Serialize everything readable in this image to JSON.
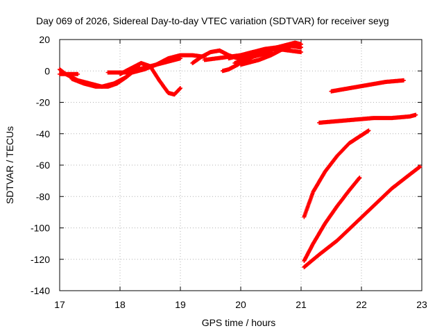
{
  "chart_data": {
    "type": "scatter",
    "title": "Day 069 of 2026, Sidereal Day-to-day VTEC variation (SDTVAR) for receiver seyg",
    "xlabel": "GPS time / hours",
    "ylabel": "SDTVAR / TECUs",
    "xlim": [
      17,
      23
    ],
    "ylim": [
      -140,
      20
    ],
    "xticks": [
      "17",
      "18",
      "19",
      "20",
      "21",
      "22",
      "23"
    ],
    "yticks": [
      "20",
      "0",
      "-20",
      "-40",
      "-60",
      "-80",
      "-100",
      "-120",
      "-140"
    ],
    "grid": true,
    "marker": "plus",
    "color": "#ff0000",
    "series": [
      {
        "x": [
          17.0,
          17.1,
          17.2,
          17.3,
          17.5,
          17.7,
          17.9,
          18.1,
          18.3
        ],
        "y": [
          1,
          -2,
          -4,
          -6,
          -8,
          -10,
          -8,
          -4,
          2
        ]
      },
      {
        "x": [
          17.0,
          17.1,
          17.3
        ],
        "y": [
          -2,
          -2,
          -2
        ]
      },
      {
        "x": [
          17.2,
          17.4,
          17.6,
          17.8,
          17.95,
          18.1,
          18.3
        ],
        "y": [
          -5,
          -8,
          -10,
          -10,
          -8,
          -4,
          3
        ]
      },
      {
        "x": [
          17.8,
          18.0,
          18.2,
          18.4,
          18.6,
          18.8,
          19.0,
          19.2,
          19.4
        ],
        "y": [
          -1,
          -1,
          -1,
          1,
          4,
          8,
          10,
          10,
          9
        ]
      },
      {
        "x": [
          18.0,
          18.2,
          18.35,
          18.5,
          18.65,
          18.8,
          18.9,
          19.0
        ],
        "y": [
          -2,
          2,
          5,
          3,
          -6,
          -14,
          -15,
          -11
        ]
      },
      {
        "x": [
          18.3,
          18.5,
          18.7,
          18.9,
          19.0
        ],
        "y": [
          1,
          3,
          5,
          7,
          8
        ]
      },
      {
        "x": [
          19.2,
          19.35,
          19.5,
          19.65,
          19.8,
          19.95,
          20.1,
          20.25
        ],
        "y": [
          5,
          9,
          12,
          13,
          10,
          8,
          9,
          10
        ]
      },
      {
        "x": [
          19.4,
          19.6,
          19.8,
          20.0,
          20.2,
          20.4,
          20.6,
          20.8,
          21.0
        ],
        "y": [
          7,
          8,
          9,
          10,
          12,
          14,
          15,
          16,
          15
        ]
      },
      {
        "x": [
          19.7,
          19.8,
          19.95,
          20.1,
          20.3,
          20.5
        ],
        "y": [
          0,
          1,
          4,
          8,
          10,
          12
        ]
      },
      {
        "x": [
          19.8,
          20.0,
          20.2,
          20.4,
          20.6,
          20.8,
          21.0
        ],
        "y": [
          8,
          10,
          12,
          13,
          14,
          13,
          12
        ]
      },
      {
        "x": [
          19.9,
          20.1,
          20.3,
          20.5,
          20.7,
          20.9,
          21.0
        ],
        "y": [
          5,
          7,
          11,
          14,
          16,
          18,
          17
        ]
      },
      {
        "x": [
          20.0,
          20.1,
          20.3,
          20.5,
          20.7,
          20.85,
          21.0
        ],
        "y": [
          4,
          5,
          7,
          10,
          14,
          16,
          15
        ]
      },
      {
        "x": [
          21.5,
          21.8,
          22.1,
          22.4,
          22.7
        ],
        "y": [
          -13,
          -11,
          -9,
          -7,
          -6
        ]
      },
      {
        "x": [
          21.3,
          21.6,
          21.9,
          22.2,
          22.5,
          22.8,
          22.9
        ],
        "y": [
          -33,
          -32,
          -31,
          -30,
          -30,
          -29,
          -28
        ]
      },
      {
        "x": [
          21.05,
          21.2,
          21.4,
          21.6,
          21.8,
          22.0,
          22.12
        ],
        "y": [
          -93,
          -77,
          -64,
          -54,
          -46,
          -41,
          -38
        ]
      },
      {
        "x": [
          21.05,
          21.2,
          21.4,
          21.6,
          21.8,
          21.97
        ],
        "y": [
          -121,
          -110,
          -97,
          -86,
          -76,
          -68
        ]
      },
      {
        "x": [
          21.05,
          21.3,
          21.6,
          21.9,
          22.2,
          22.5,
          22.8,
          22.97
        ],
        "y": [
          -125,
          -117,
          -108,
          -97,
          -86,
          -75,
          -66,
          -61
        ]
      }
    ]
  }
}
